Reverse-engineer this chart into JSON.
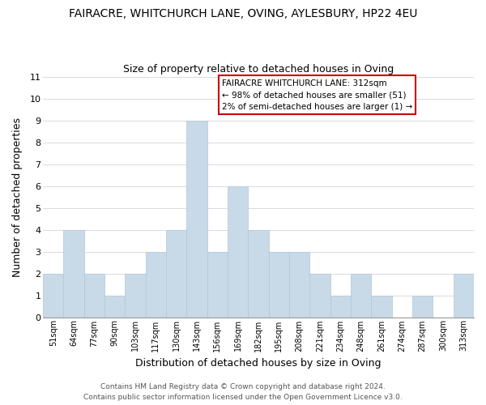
{
  "title": "FAIRACRE, WHITCHURCH LANE, OVING, AYLESBURY, HP22 4EU",
  "subtitle": "Size of property relative to detached houses in Oving",
  "xlabel": "Distribution of detached houses by size in Oving",
  "ylabel": "Number of detached properties",
  "bin_labels": [
    "51sqm",
    "64sqm",
    "77sqm",
    "90sqm",
    "103sqm",
    "117sqm",
    "130sqm",
    "143sqm",
    "156sqm",
    "169sqm",
    "182sqm",
    "195sqm",
    "208sqm",
    "221sqm",
    "234sqm",
    "248sqm",
    "261sqm",
    "274sqm",
    "287sqm",
    "300sqm",
    "313sqm"
  ],
  "bar_heights": [
    2,
    4,
    2,
    1,
    2,
    3,
    4,
    9,
    3,
    6,
    4,
    3,
    3,
    2,
    1,
    2,
    1,
    0,
    1,
    0,
    2
  ],
  "bar_color": "#c8d9e8",
  "bar_edge_color": "#b0c8dc",
  "grid_color": "#cccccc",
  "ylim": [
    0,
    11
  ],
  "yticks": [
    0,
    1,
    2,
    3,
    4,
    5,
    6,
    7,
    8,
    9,
    10,
    11
  ],
  "legend_title": "FAIRACRE WHITCHURCH LANE: 312sqm",
  "legend_line1": "← 98% of detached houses are smaller (51)",
  "legend_line2": "2% of semi-detached houses are larger (1) →",
  "legend_box_color": "#ffffff",
  "legend_border_color": "#cc0000",
  "footer_line1": "Contains HM Land Registry data © Crown copyright and database right 2024.",
  "footer_line2": "Contains public sector information licensed under the Open Government Licence v3.0.",
  "figsize": [
    6.0,
    5.0
  ],
  "dpi": 100
}
